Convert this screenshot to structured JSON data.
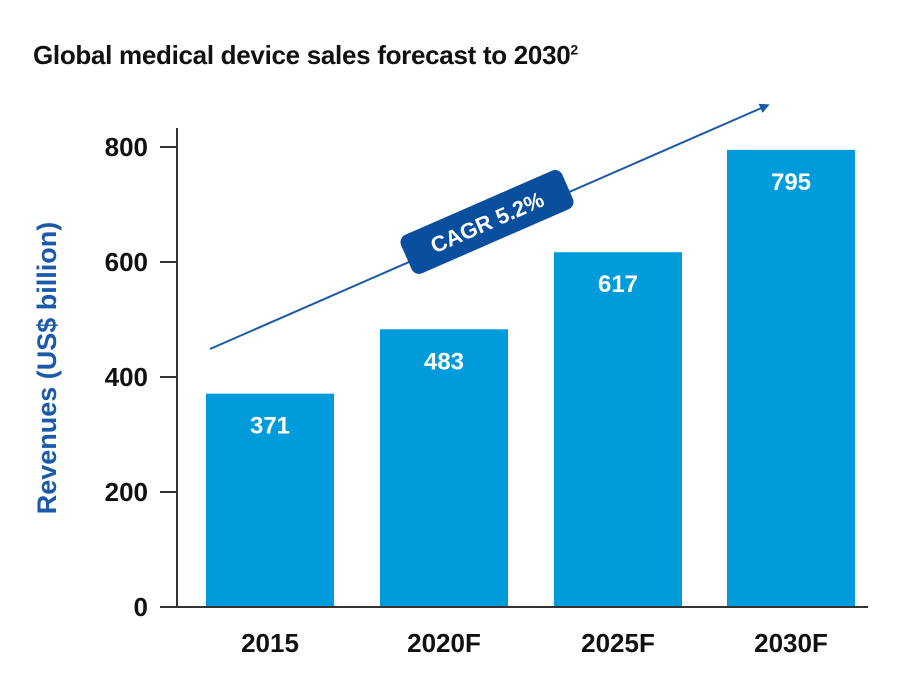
{
  "chart_data": {
    "type": "bar",
    "title": "Global medical device sales forecast to 2030",
    "title_footnote": "2",
    "xlabel": "",
    "ylabel": "Revenues (US$ billion)",
    "categories": [
      "2015",
      "2020F",
      "2025F",
      "2030F"
    ],
    "values": [
      371,
      483,
      617,
      795
    ],
    "data_labels": [
      "371",
      "483",
      "617",
      "795"
    ],
    "ylim": [
      0,
      800
    ],
    "yticks": [
      0,
      200,
      400,
      600,
      800
    ],
    "ytick_labels": [
      "0",
      "200",
      "400",
      "600",
      "800"
    ],
    "grid": false,
    "legend": "none",
    "annotation": {
      "text": "CAGR 5.2%",
      "type": "trend-arrow"
    },
    "colors": {
      "bar": "#009bdb",
      "axis": "#333333",
      "ylabel": "#1a5aa8",
      "arrow": "#1a5aa8",
      "badge": "#0a4f9e"
    }
  }
}
